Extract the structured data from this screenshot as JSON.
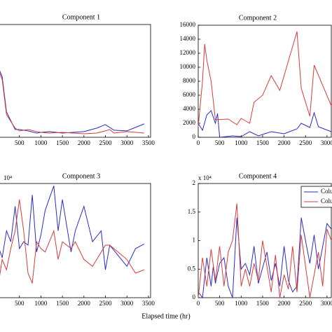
{
  "x_label": "Elapsed time (hr)",
  "chart_data": [
    {
      "type": "line",
      "title": "Component 1",
      "xlim": [
        0,
        3550
      ],
      "ylim": [
        0,
        16000
      ],
      "xticks": [
        500,
        1000,
        1500,
        2000,
        2500,
        3000,
        3500
      ],
      "series": [
        {
          "color": "#2b2bc8",
          "x": [
            0,
            100,
            200,
            400,
            500,
            700,
            900,
            1000,
            1200,
            1500,
            2000,
            2300,
            2500,
            2700,
            3000,
            3400
          ],
          "values": [
            10100,
            8600,
            3600,
            1100,
            1100,
            900,
            600,
            700,
            800,
            600,
            800,
            1300,
            1800,
            1000,
            900,
            1900
          ]
        },
        {
          "color": "#d93a3a",
          "x": [
            0,
            100,
            200,
            400,
            500,
            700,
            900,
            1000,
            1200,
            1500,
            2000,
            2300,
            2500,
            2600,
            2700,
            3000,
            3400
          ],
          "values": [
            9800,
            8200,
            3200,
            1300,
            900,
            1100,
            800,
            700,
            600,
            700,
            500,
            600,
            900,
            1100,
            600,
            800,
            600
          ]
        }
      ]
    },
    {
      "type": "line",
      "title": "Component 2",
      "xlim": [
        0,
        3100
      ],
      "ylim": [
        0,
        16000
      ],
      "xticks": [
        0,
        500,
        1000,
        1500,
        2000,
        2500,
        3000
      ],
      "yticks": [
        0,
        2000,
        4000,
        6000,
        8000,
        10000,
        12000,
        14000,
        16000
      ],
      "series": [
        {
          "color": "#2b2bc8",
          "x": [
            0,
            100,
            200,
            300,
            400,
            450,
            500,
            800,
            1000,
            1200,
            1400,
            1700,
            2000,
            2300,
            2400,
            2600,
            2700,
            2800,
            3100
          ],
          "values": [
            2000,
            1000,
            3200,
            3800,
            2000,
            3400,
            0,
            200,
            100,
            800,
            200,
            800,
            500,
            1200,
            2000,
            1400,
            3500,
            1500,
            800
          ]
        },
        {
          "color": "#d93a3a",
          "x": [
            0,
            100,
            150,
            200,
            300,
            400,
            700,
            900,
            1000,
            1200,
            1300,
            1500,
            1700,
            1900,
            2300,
            2400,
            2600,
            2700,
            3100
          ],
          "values": [
            1500,
            8000,
            13300,
            11000,
            8000,
            2500,
            2600,
            1800,
            2700,
            2000,
            5000,
            6000,
            8800,
            6700,
            15100,
            7000,
            3000,
            10300,
            4500
          ]
        }
      ]
    },
    {
      "type": "line",
      "title": "Component 3",
      "y_multiplier": "10⁴",
      "xlim": [
        0,
        3550
      ],
      "ylim": [
        0,
        2
      ],
      "xticks": [
        500,
        1000,
        1500,
        2000,
        2500,
        3000,
        3500
      ],
      "series": [
        {
          "color": "#2b2bc8",
          "x": [
            0,
            100,
            200,
            300,
            400,
            500,
            600,
            700,
            800,
            900,
            1000,
            1100,
            1300,
            1400,
            1500,
            1700,
            1800,
            2000,
            2200,
            2400,
            2500,
            2600,
            3000,
            3200,
            3400
          ],
          "values": [
            0.92,
            0.7,
            1.17,
            0.98,
            1.6,
            0.86,
            0.98,
            0.92,
            1.8,
            0.8,
            1.1,
            1.53,
            1.96,
            1.17,
            1.72,
            0.8,
            1.17,
            1.6,
            0.98,
            1.17,
            0.49,
            0.92,
            0.55,
            0.86,
            0.94
          ]
        },
        {
          "color": "#d93a3a",
          "x": [
            0,
            100,
            200,
            300,
            400,
            500,
            600,
            700,
            800,
            900,
            1000,
            1100,
            1300,
            1400,
            1500,
            1700,
            1800,
            2000,
            2200,
            2500,
            2600,
            3000,
            3200,
            3400
          ],
          "values": [
            0.18,
            0.67,
            0.49,
            0.86,
            1.17,
            1.72,
            1.17,
            0.43,
            0.25,
            0.98,
            0.86,
            0.8,
            1.17,
            0.67,
            0.98,
            0.86,
            0.98,
            0.67,
            0.55,
            0.92,
            0.92,
            0.67,
            0.43,
            0.49
          ]
        }
      ]
    },
    {
      "type": "line",
      "title": "Component 4",
      "y_multiplier": "x 10⁴",
      "xlim": [
        0,
        3100
      ],
      "ylim": [
        0,
        2
      ],
      "xticks": [
        0,
        500,
        1000,
        1500,
        2000,
        2500,
        3000
      ],
      "yticks": [
        0,
        {
          "value": 0.5,
          "label": "0.5"
        },
        1,
        {
          "value": 1.5,
          "label": "1.5"
        },
        2
      ],
      "legend": "upper right",
      "series": [
        {
          "name": "Colu",
          "color": "#2b2bc8",
          "x": [
            0,
            100,
            200,
            300,
            350,
            400,
            500,
            600,
            700,
            800,
            900,
            1000,
            1100,
            1200,
            1300,
            1400,
            1600,
            1700,
            1800,
            1900,
            2000,
            2100,
            2200,
            2300,
            2400,
            2500,
            2600,
            2700,
            2800,
            3000,
            3100
          ],
          "values": [
            0.1,
            0,
            0.7,
            0.2,
            0.55,
            0.25,
            0.6,
            0.7,
            0.2,
            0,
            1.4,
            0.5,
            0.6,
            0.4,
            0.9,
            0.25,
            0.8,
            0.3,
            0.6,
            0.2,
            0.9,
            0.3,
            0.1,
            0.2,
            1.4,
            1,
            0.6,
            1.1,
            0.5,
            1.3,
            1.2
          ]
        },
        {
          "name": "Colu",
          "color": "#d93a3a",
          "x": [
            0,
            100,
            200,
            300,
            400,
            500,
            600,
            700,
            800,
            900,
            1000,
            1100,
            1200,
            1300,
            1400,
            1500,
            1700,
            1800,
            1900,
            2000,
            2100,
            2200,
            2300,
            2400,
            2600,
            2700,
            2800,
            2900,
            3000,
            3100
          ],
          "values": [
            0,
            0.7,
            0.2,
            0.85,
            0.3,
            0.9,
            0.2,
            0.8,
            1,
            1.65,
            0.2,
            0.5,
            0.2,
            0.6,
            0.3,
            1,
            0.1,
            0.75,
            0,
            0.4,
            0.15,
            0.9,
            0.1,
            1.1,
            0,
            0.4,
            0.8,
            0.2,
            1.2,
            1
          ]
        }
      ]
    }
  ]
}
